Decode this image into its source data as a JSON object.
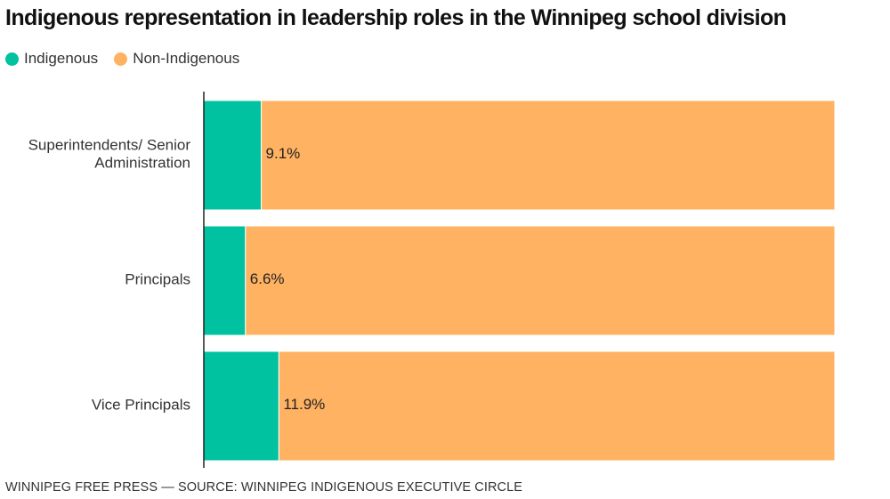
{
  "colors": {
    "indigenous": "#00c2a0",
    "non_indigenous": "#ffb262",
    "axis": "#222222"
  },
  "chart_data": {
    "type": "bar",
    "orientation": "horizontal",
    "stacked": true,
    "normalized": true,
    "title": "Indigenous representation in leadership roles in the Winnipeg school division",
    "xlabel": "",
    "ylabel": "",
    "xlim": [
      0,
      100
    ],
    "categories": [
      [
        "Superintendents/ Senior",
        "Administration"
      ],
      [
        "Principals"
      ],
      [
        "Vice Principals"
      ]
    ],
    "series": [
      {
        "name": "Indigenous",
        "values": [
          9.1,
          6.6,
          11.9
        ],
        "labels": [
          "9.1%",
          "6.6%",
          "11.9%"
        ]
      },
      {
        "name": "Non-Indigenous",
        "values": [
          90.9,
          93.4,
          88.1
        ]
      }
    ],
    "legend_position": "top-left",
    "grid": false
  },
  "footer": {
    "credit": "WINNIPEG FREE PRESS — SOURCE: WINNIPEG INDIGENOUS EXECUTIVE CIRCLE"
  }
}
